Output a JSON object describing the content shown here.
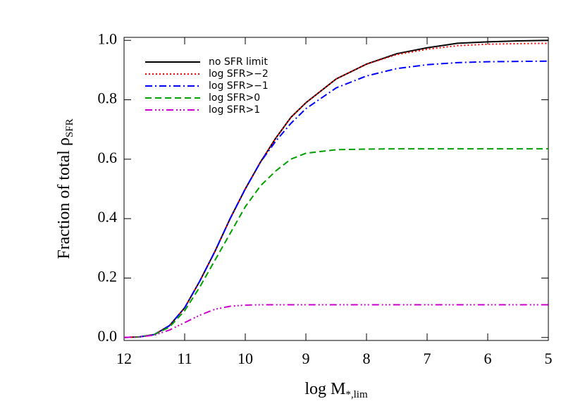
{
  "chart_data": {
    "type": "line",
    "xlabel": {
      "text": "log M",
      "sub": "*,lim"
    },
    "ylabel": {
      "text": "Fraction of total ρ",
      "sub": "SFR"
    },
    "x": [
      12,
      11.75,
      11.5,
      11.25,
      11,
      10.75,
      10.5,
      10.25,
      10,
      9.75,
      9.5,
      9.25,
      9,
      8.5,
      8,
      7.5,
      7,
      6.5,
      6,
      5.5,
      5
    ],
    "series": [
      {
        "name": "no SFR limit",
        "color": "#000000",
        "dash": "solid",
        "values": [
          0,
          0.002,
          0.01,
          0.04,
          0.1,
          0.19,
          0.29,
          0.4,
          0.5,
          0.59,
          0.67,
          0.74,
          0.79,
          0.87,
          0.92,
          0.955,
          0.975,
          0.99,
          0.995,
          0.998,
          1.0
        ]
      },
      {
        "name": "log SFR>−2",
        "color": "#ff0000",
        "dash": "dotted",
        "values": [
          0,
          0.002,
          0.01,
          0.04,
          0.1,
          0.19,
          0.29,
          0.4,
          0.5,
          0.59,
          0.67,
          0.74,
          0.79,
          0.87,
          0.92,
          0.952,
          0.97,
          0.982,
          0.987,
          0.989,
          0.99
        ]
      },
      {
        "name": "log SFR>−1",
        "color": "#0000ff",
        "dash": "dashdot",
        "values": [
          0,
          0.002,
          0.01,
          0.04,
          0.1,
          0.19,
          0.29,
          0.4,
          0.5,
          0.59,
          0.66,
          0.72,
          0.77,
          0.84,
          0.88,
          0.905,
          0.918,
          0.925,
          0.928,
          0.929,
          0.93
        ]
      },
      {
        "name": "log SFR>0",
        "color": "#00a000",
        "dash": "dashed",
        "values": [
          0,
          0.002,
          0.01,
          0.035,
          0.09,
          0.17,
          0.26,
          0.35,
          0.44,
          0.51,
          0.56,
          0.6,
          0.62,
          0.632,
          0.634,
          0.635,
          0.635,
          0.635,
          0.635,
          0.635,
          0.635
        ]
      },
      {
        "name": "log SFR>1",
        "color": "#cc00cc",
        "dash": "dashdotdotdot",
        "values": [
          0,
          0.002,
          0.008,
          0.025,
          0.05,
          0.075,
          0.095,
          0.105,
          0.109,
          0.11,
          0.11,
          0.11,
          0.11,
          0.11,
          0.11,
          0.11,
          0.11,
          0.11,
          0.11,
          0.11,
          0.11
        ]
      }
    ],
    "xlim": [
      12,
      5
    ],
    "xticks": [
      12,
      11,
      10,
      9,
      8,
      7,
      6,
      5
    ],
    "ylim": [
      -0.01,
      1.01
    ],
    "yticks": [
      {
        "value": 0,
        "label": "0.0"
      },
      0.2,
      0.4,
      0.6,
      0.8,
      {
        "value": 1,
        "label": "1.0"
      }
    ],
    "legend": "upper left"
  }
}
